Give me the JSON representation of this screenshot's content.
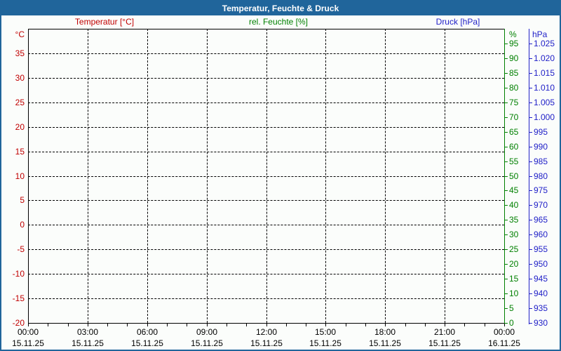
{
  "window": {
    "title_bar": "Temperatur, Feuchte & Druck"
  },
  "legend": {
    "items": [
      {
        "label": "Temperatur [°C]",
        "color": "#c00000"
      },
      {
        "label": "rel. Feuchte [%]",
        "color": "#008000"
      },
      {
        "label": "Druck [hPa]",
        "color": "#2121c8"
      }
    ]
  },
  "colors": {
    "frame": "#20659b",
    "background": "#fbfdfb",
    "grid": "#000000",
    "axis_black": "#000000",
    "temperature": "#c00000",
    "humidity": "#008000",
    "pressure": "#2121c8",
    "title_text": "#ffffff"
  },
  "chart_data": {
    "type": "line",
    "title": "Temperatur, Feuchte & Druck",
    "grid": true,
    "x_axis": {
      "range_hours": [
        0,
        24
      ],
      "major_tick_interval_hours": 3,
      "minor_tick_interval_hours": 1,
      "major_ticks": [
        {
          "hour": 0,
          "time": "00:00",
          "date": "15.11.25"
        },
        {
          "hour": 3,
          "time": "03:00",
          "date": "15.11.25"
        },
        {
          "hour": 6,
          "time": "06:00",
          "date": "15.11.25"
        },
        {
          "hour": 9,
          "time": "09:00",
          "date": "15.11.25"
        },
        {
          "hour": 12,
          "time": "12:00",
          "date": "15.11.25"
        },
        {
          "hour": 15,
          "time": "15:00",
          "date": "15.11.25"
        },
        {
          "hour": 18,
          "time": "18:00",
          "date": "15.11.25"
        },
        {
          "hour": 21,
          "time": "21:00",
          "date": "15.11.25"
        },
        {
          "hour": 24,
          "time": "00:00",
          "date": "16.11.25"
        }
      ]
    },
    "y_axes": [
      {
        "name": "temperature",
        "unit": "°C",
        "side": "left",
        "color": "#c00000",
        "min": -20,
        "max": 40,
        "tick_step": 5,
        "gridlines": true,
        "ticks": [
          35,
          30,
          25,
          20,
          15,
          10,
          5,
          0,
          -5,
          -10,
          -15,
          -20
        ]
      },
      {
        "name": "humidity",
        "unit": "%",
        "side": "right",
        "color": "#008000",
        "min": 0,
        "max": 100,
        "tick_step": 5,
        "gridlines": false,
        "ticks": [
          95,
          90,
          85,
          80,
          75,
          70,
          65,
          60,
          55,
          50,
          45,
          40,
          35,
          30,
          25,
          20,
          15,
          10,
          5,
          0
        ]
      },
      {
        "name": "pressure",
        "unit": "hPa",
        "side": "right-outer",
        "color": "#2121c8",
        "min": 930,
        "max": 1030,
        "tick_step": 5,
        "gridlines": false,
        "ticks": [
          1025,
          1020,
          1015,
          1010,
          1005,
          1000,
          995,
          990,
          985,
          980,
          975,
          970,
          965,
          960,
          955,
          950,
          945,
          940,
          935,
          930
        ],
        "tick_labels": [
          "1.025",
          "1.020",
          "1.015",
          "1.010",
          "1.005",
          "1.000",
          "995",
          "990",
          "985",
          "980",
          "975",
          "970",
          "965",
          "960",
          "955",
          "950",
          "945",
          "940",
          "935",
          "930"
        ]
      }
    ],
    "series": [
      {
        "name": "Temperatur [°C]",
        "axis": "temperature",
        "color": "#c00000",
        "points": []
      },
      {
        "name": "rel. Feuchte [%]",
        "axis": "humidity",
        "color": "#008000",
        "points": []
      },
      {
        "name": "Druck [hPa]",
        "axis": "pressure",
        "color": "#2121c8",
        "points": []
      }
    ]
  }
}
